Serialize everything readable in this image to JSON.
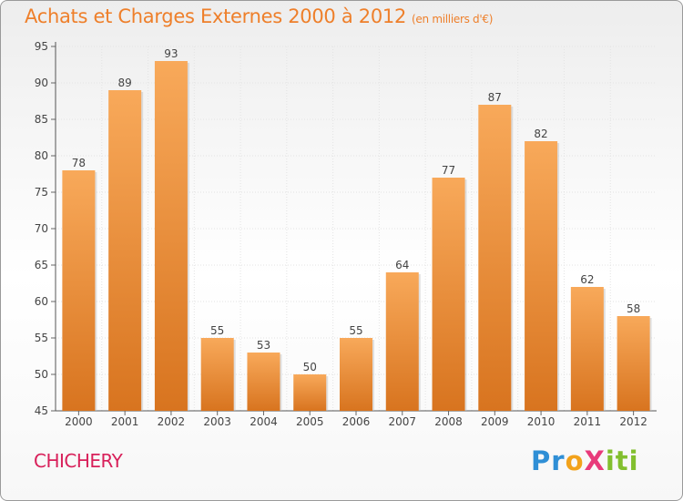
{
  "title": "Achats et Charges Externes 2000 à 2012",
  "subtitle": "(en milliers d'€)",
  "town": "CHICHERY",
  "logo": {
    "p1": "Pr",
    "p2": "o",
    "p3": "X",
    "p4": "iti"
  },
  "colors": {
    "bar_top": "#f8a95a",
    "bar_bottom": "#d8741f",
    "title": "#ee7f2a",
    "town": "#d8205a"
  },
  "chart_data": {
    "type": "bar",
    "title": "Achats et Charges Externes 2000 à 2012",
    "subtitle": "(en milliers d'€)",
    "categories": [
      "2000",
      "2001",
      "2002",
      "2003",
      "2004",
      "2005",
      "2006",
      "2007",
      "2008",
      "2009",
      "2010",
      "2011",
      "2012"
    ],
    "values": [
      78,
      89,
      93,
      55,
      53,
      50,
      55,
      64,
      77,
      87,
      82,
      62,
      58
    ],
    "ylim": [
      45,
      95
    ],
    "yticks": [
      45,
      50,
      55,
      60,
      65,
      70,
      75,
      80,
      85,
      90,
      95
    ],
    "grid": true,
    "xlabel": "",
    "ylabel": ""
  }
}
